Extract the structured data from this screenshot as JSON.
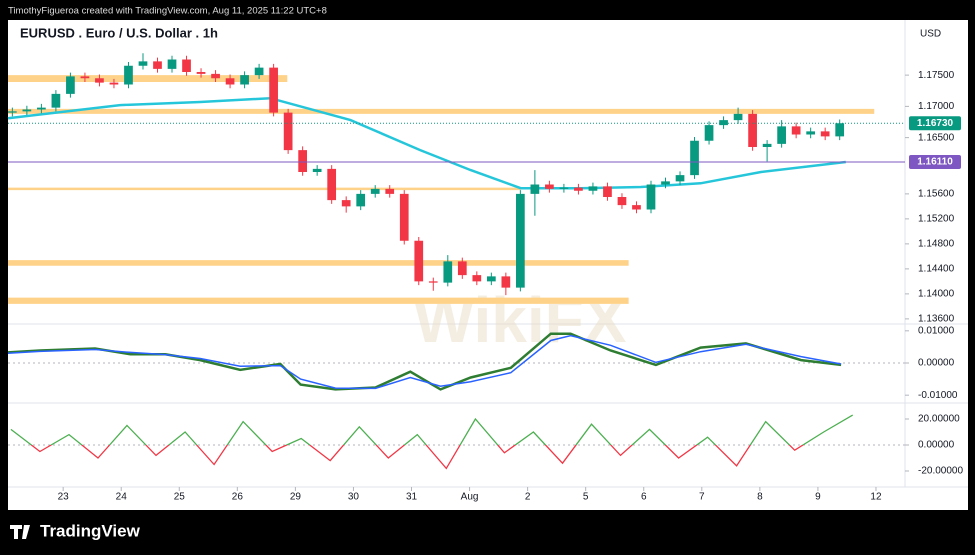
{
  "header": "TimothyFigueroa created with TradingView.com, Aug 11, 2025 11:22 UTC+8",
  "footer": "TradingView",
  "watermark": "WikiFX",
  "chart_data": [
    {
      "type": "candlestick",
      "title": "EURUSD . Euro / U.S. Dollar . 1h",
      "currency": "USD",
      "up_color": "#089981",
      "down_color": "#f23645",
      "x": [
        -0.875,
        -0.625,
        -0.375,
        -0.125,
        0.125,
        0.375,
        0.625,
        0.875,
        1.125,
        1.375,
        1.625,
        1.875,
        2.125,
        2.375,
        2.625,
        2.875,
        3.125,
        3.375,
        3.625,
        3.875,
        4.125,
        4.375,
        4.625,
        4.875,
        5.125,
        5.375,
        5.625,
        5.875,
        6.125,
        6.375,
        6.625,
        6.875,
        7.125,
        7.375,
        7.625,
        7.875,
        8.125,
        8.375,
        8.625,
        8.875,
        9.125,
        9.375,
        9.625,
        9.875,
        10.125,
        10.375,
        10.625,
        10.875,
        11.125,
        11.375,
        11.625,
        11.875,
        12.125,
        12.375,
        12.625,
        12.875,
        13.125,
        13.375
      ],
      "open": [
        1.169,
        1.1692,
        1.1695,
        1.1698,
        1.172,
        1.1748,
        1.1745,
        1.1738,
        1.1735,
        1.1765,
        1.1772,
        1.176,
        1.1775,
        1.1755,
        1.1752,
        1.1745,
        1.1735,
        1.175,
        1.1762,
        1.169,
        1.163,
        1.1595,
        1.16,
        1.155,
        1.154,
        1.156,
        1.1568,
        1.156,
        1.1485,
        1.142,
        1.1418,
        1.1452,
        1.143,
        1.142,
        1.1428,
        1.141,
        1.156,
        1.1575,
        1.1568,
        1.157,
        1.1565,
        1.1572,
        1.1555,
        1.1542,
        1.1535,
        1.1575,
        1.158,
        1.159,
        1.1645,
        1.167,
        1.1678,
        1.1688,
        1.1635,
        1.164,
        1.1668,
        1.1655,
        1.166,
        1.1652
      ],
      "high": [
        1.1698,
        1.1701,
        1.1704,
        1.1726,
        1.1754,
        1.1754,
        1.1751,
        1.1744,
        1.1771,
        1.1785,
        1.1778,
        1.1781,
        1.1781,
        1.1761,
        1.1758,
        1.1751,
        1.1756,
        1.1768,
        1.1768,
        1.1696,
        1.1636,
        1.1606,
        1.1606,
        1.1556,
        1.1566,
        1.1574,
        1.1574,
        1.1566,
        1.1491,
        1.1426,
        1.1462,
        1.1458,
        1.1436,
        1.1434,
        1.1434,
        1.1566,
        1.1598,
        1.1581,
        1.1576,
        1.1576,
        1.1578,
        1.1578,
        1.1561,
        1.1548,
        1.1581,
        1.1586,
        1.1596,
        1.1651,
        1.1676,
        1.1684,
        1.1698,
        1.1694,
        1.1646,
        1.1678,
        1.1674,
        1.1666,
        1.1666,
        1.1679
      ],
      "low": [
        1.1684,
        1.1686,
        1.1689,
        1.1692,
        1.1714,
        1.1739,
        1.1732,
        1.1729,
        1.1729,
        1.1759,
        1.1754,
        1.1754,
        1.1749,
        1.1746,
        1.1739,
        1.1729,
        1.1729,
        1.1744,
        1.1684,
        1.1624,
        1.1589,
        1.1589,
        1.1544,
        1.153,
        1.1534,
        1.1554,
        1.1554,
        1.1479,
        1.1414,
        1.1405,
        1.1412,
        1.1424,
        1.1414,
        1.1414,
        1.1398,
        1.1404,
        1.1525,
        1.1562,
        1.1562,
        1.1559,
        1.1559,
        1.1549,
        1.1536,
        1.1529,
        1.1529,
        1.1569,
        1.1574,
        1.1584,
        1.1639,
        1.1664,
        1.1672,
        1.1629,
        1.1612,
        1.1634,
        1.1649,
        1.1649,
        1.1646,
        1.1646
      ],
      "close": [
        1.1692,
        1.1695,
        1.1698,
        1.172,
        1.1748,
        1.1745,
        1.1738,
        1.1735,
        1.1765,
        1.1772,
        1.176,
        1.1775,
        1.1755,
        1.1752,
        1.1745,
        1.1735,
        1.175,
        1.1762,
        1.169,
        1.163,
        1.1595,
        1.16,
        1.155,
        1.154,
        1.156,
        1.1568,
        1.156,
        1.1485,
        1.142,
        1.1418,
        1.1452,
        1.143,
        1.142,
        1.1428,
        1.141,
        1.156,
        1.1575,
        1.1568,
        1.157,
        1.1565,
        1.1572,
        1.1555,
        1.1542,
        1.1535,
        1.1575,
        1.158,
        1.159,
        1.1645,
        1.167,
        1.1678,
        1.1688,
        1.1635,
        1.164,
        1.1668,
        1.1655,
        1.166,
        1.1652,
        1.1673
      ],
      "moving_average": {
        "color": "#26c6da",
        "x": [
          -0.95,
          0.98,
          2.36,
          3.57,
          4.95,
          6.15,
          7.02,
          7.88,
          8.91,
          9.95,
          10.98,
          12.02,
          13.48
        ],
        "values": [
          1.1681,
          1.1702,
          1.1707,
          1.1713,
          1.1678,
          1.163,
          1.1598,
          1.1569,
          1.1569,
          1.1571,
          1.1577,
          1.1595,
          1.1611
        ]
      },
      "zone_color": "#ffd28a",
      "zones": [
        {
          "x": [
            -0.95,
            3.86
          ],
          "y": [
            1.1739,
            1.175
          ]
        },
        {
          "x": [
            -0.95,
            13.97
          ],
          "y": [
            1.1688,
            1.1696
          ]
        },
        {
          "x": [
            -0.95,
            7.88
          ],
          "y": [
            1.1566,
            1.157
          ]
        },
        {
          "x": [
            -0.95,
            9.74
          ],
          "y": [
            1.1445,
            1.1454
          ]
        },
        {
          "x": [
            -0.95,
            9.74
          ],
          "y": [
            1.1384,
            1.1394
          ]
        }
      ],
      "price_lines": [
        {
          "value": 1.1611,
          "label": "1.16110",
          "color": "#7e57c2"
        },
        {
          "value": 1.1673,
          "label": "1.16730",
          "color": "#089981"
        }
      ],
      "xlim": [
        -0.95,
        14.5
      ],
      "ylim": [
        1.1355,
        1.1835
      ],
      "yticks": [
        {
          "value": 1.175,
          "label": "1.17500"
        },
        {
          "value": 1.17,
          "label": "1.17000"
        },
        {
          "value": 1.165,
          "label": "1.16500"
        },
        {
          "value": 1.156,
          "label": "1.15600"
        },
        {
          "value": 1.152,
          "label": "1.15200"
        },
        {
          "value": 1.148,
          "label": "1.14800"
        },
        {
          "value": 1.144,
          "label": "1.14400"
        },
        {
          "value": 1.14,
          "label": "1.14000"
        },
        {
          "value": 1.136,
          "label": "1.13600"
        }
      ],
      "xticks": [
        {
          "value": 0,
          "label": "23"
        },
        {
          "value": 1,
          "label": "24"
        },
        {
          "value": 2,
          "label": "25"
        },
        {
          "value": 3,
          "label": "26"
        },
        {
          "value": 4,
          "label": "29"
        },
        {
          "value": 5,
          "label": "30"
        },
        {
          "value": 6,
          "label": "31"
        },
        {
          "value": 7,
          "label": "Aug"
        },
        {
          "value": 8,
          "label": "2"
        },
        {
          "value": 9,
          "label": "5"
        },
        {
          "value": 10,
          "label": "6"
        },
        {
          "value": 11,
          "label": "7"
        },
        {
          "value": 12,
          "label": "8"
        },
        {
          "value": 13,
          "label": "9"
        },
        {
          "value": 14,
          "label": "12"
        }
      ]
    },
    {
      "type": "line",
      "xlim": [
        -0.95,
        14.5
      ],
      "ylim": [
        -0.0115,
        0.0115
      ],
      "x": [
        -0.95,
        -0.4,
        0.55,
        1.16,
        1.76,
        2.36,
        3.05,
        3.74,
        4.09,
        4.69,
        5.38,
        5.98,
        6.5,
        7.02,
        7.71,
        8.4,
        8.74,
        9.43,
        10.21,
        10.98,
        11.76,
        12.71,
        13.4
      ],
      "series": [
        {
          "color": "#2e7d32",
          "values": [
            0.0033,
            0.0039,
            0.0045,
            0.0027,
            0.0027,
            0.0009,
            -0.0021,
            -0.0003,
            -0.0067,
            -0.0082,
            -0.0076,
            -0.0027,
            -0.0082,
            -0.0045,
            -0.0015,
            0.0091,
            0.0091,
            0.0039,
            -0.0006,
            0.0048,
            0.0061,
            0.0009,
            -0.0006
          ]
        },
        {
          "color": "#2962ff",
          "values": [
            0.003,
            0.0036,
            0.0042,
            0.0033,
            0.0026,
            0.0014,
            -0.001,
            -0.0008,
            -0.005,
            -0.0078,
            -0.0079,
            -0.0045,
            -0.0072,
            -0.0058,
            -0.003,
            0.007,
            0.0085,
            0.0055,
            0.0002,
            0.0035,
            0.0058,
            0.002,
            -0.0003
          ]
        }
      ],
      "yticks": [
        {
          "value": 0.01,
          "label": "0.01000"
        },
        {
          "value": 0,
          "label": "0.00000"
        },
        {
          "value": -0.01,
          "label": "-0.01000"
        }
      ]
    },
    {
      "type": "oscillator",
      "xlim": [
        -0.95,
        14.5
      ],
      "ylim": [
        -30,
        30
      ],
      "color_above": "#4caf50",
      "color_below": "#f23645",
      "x": [
        -0.9,
        -0.4,
        0.1,
        0.6,
        1.1,
        1.6,
        2.1,
        2.6,
        3.1,
        3.6,
        4.1,
        4.6,
        5.1,
        5.6,
        6.1,
        6.6,
        7.1,
        7.6,
        8.1,
        8.6,
        9.1,
        9.6,
        10.1,
        10.6,
        11.1,
        11.6,
        12.1,
        12.6,
        13.1,
        13.6
      ],
      "values": [
        12,
        -5,
        8,
        -10,
        15,
        -8,
        10,
        -15,
        18,
        -5,
        5,
        -12,
        14,
        -10,
        8,
        -18,
        20,
        -6,
        10,
        -14,
        16,
        -8,
        12,
        -10,
        6,
        -16,
        18,
        -4,
        10,
        23
      ],
      "yticks": [
        {
          "value": 20,
          "label": "20.00000"
        },
        {
          "value": 0,
          "label": "0.00000"
        },
        {
          "value": -20,
          "label": "-20.00000"
        }
      ]
    }
  ]
}
